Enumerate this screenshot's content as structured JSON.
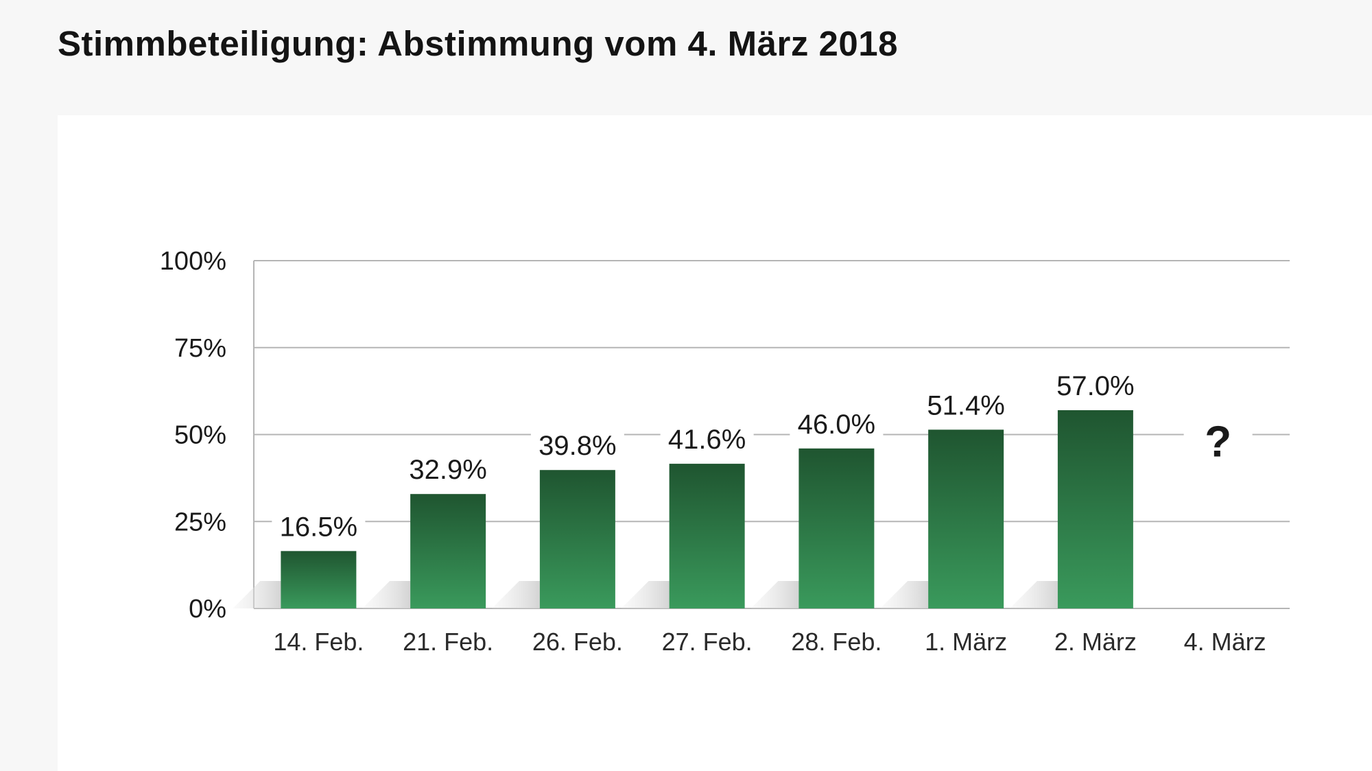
{
  "chart_data": {
    "type": "bar",
    "title": "Stimmbeteiligung: Abstimmung vom 4. März 2018",
    "categories": [
      "14. Feb.",
      "21. Feb.",
      "26. Feb.",
      "27. Feb.",
      "28. Feb.",
      "1. März",
      "2. März",
      "4. März"
    ],
    "values": [
      16.5,
      32.9,
      39.8,
      41.6,
      46.0,
      51.4,
      57.0,
      null
    ],
    "value_labels": [
      "16.5%",
      "32.9%",
      "39.8%",
      "41.6%",
      "46.0%",
      "51.4%",
      "57.0%",
      "?"
    ],
    "y_ticks": [
      0,
      25,
      50,
      75,
      100
    ],
    "y_tick_labels": [
      "0%",
      "25%",
      "50%",
      "75%",
      "100%"
    ],
    "ylim": [
      0,
      100
    ],
    "xlabel": "",
    "ylabel": "",
    "grid": true,
    "legend": "none",
    "colors": {
      "bar_top": "#1f5530",
      "bar_bottom": "#3a9a5c",
      "grid": "#b5b5b5",
      "text": "#1a1a1a"
    }
  }
}
